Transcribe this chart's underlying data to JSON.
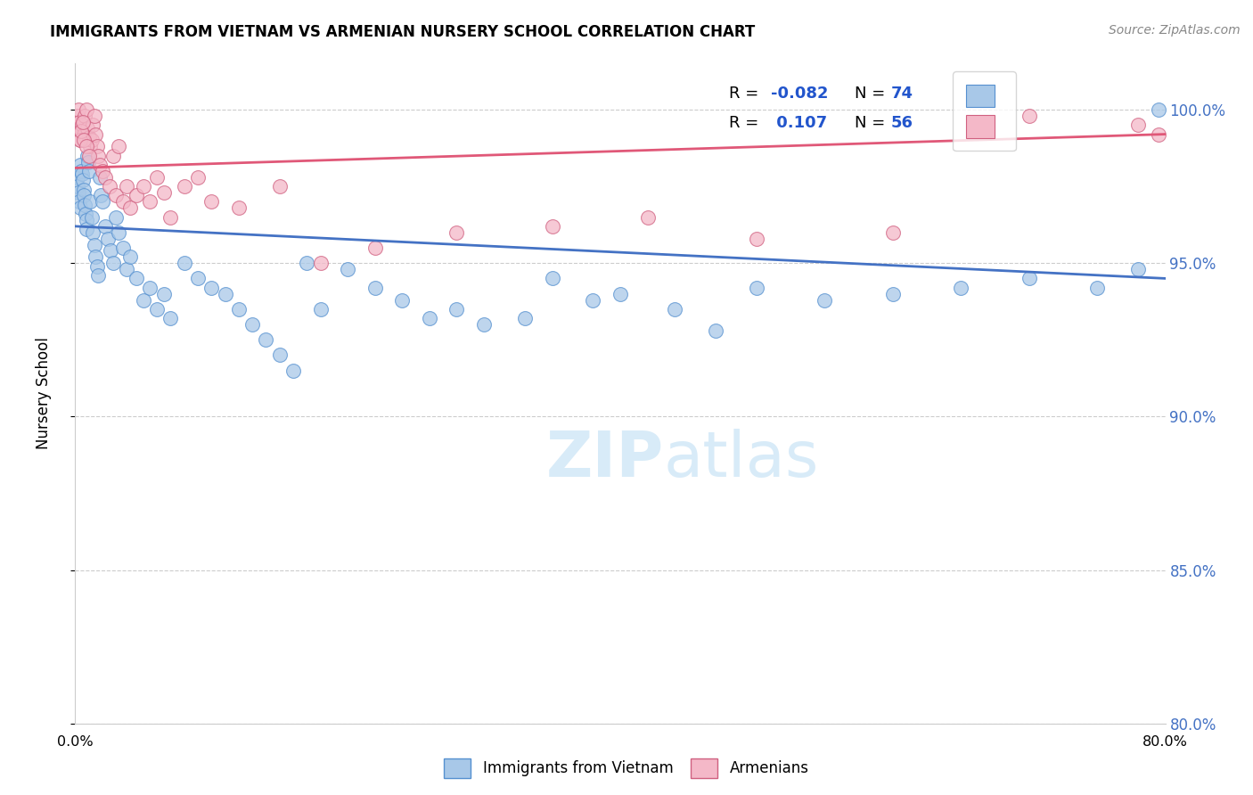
{
  "title": "IMMIGRANTS FROM VIETNAM VS ARMENIAN NURSERY SCHOOL CORRELATION CHART",
  "source": "Source: ZipAtlas.com",
  "ylabel": "Nursery School",
  "blue_color": "#A8C8E8",
  "pink_color": "#F4B8C8",
  "trendline_blue": "#4472C4",
  "trendline_pink": "#E05878",
  "blue_edge": "#5590D0",
  "pink_edge": "#D06080",
  "watermark_color": "#D8EBF8",
  "ytick_color": "#4472C4",
  "grid_color": "#CCCCCC",
  "viet_x": [
    0.15,
    0.2,
    0.25,
    0.3,
    0.35,
    0.4,
    0.45,
    0.5,
    0.55,
    0.6,
    0.65,
    0.7,
    0.75,
    0.8,
    0.85,
    0.9,
    0.95,
    1.0,
    1.1,
    1.2,
    1.3,
    1.4,
    1.5,
    1.6,
    1.7,
    1.8,
    1.9,
    2.0,
    2.2,
    2.4,
    2.6,
    2.8,
    3.0,
    3.2,
    3.5,
    3.8,
    4.0,
    4.5,
    5.0,
    5.5,
    6.0,
    6.5,
    7.0,
    8.0,
    9.0,
    10.0,
    11.0,
    12.0,
    13.0,
    14.0,
    15.0,
    16.0,
    17.0,
    18.0,
    20.0,
    22.0,
    24.0,
    26.0,
    28.0,
    30.0,
    33.0,
    35.0,
    38.0,
    40.0,
    44.0,
    47.0,
    50.0,
    55.0,
    60.0,
    65.0,
    70.0,
    75.0,
    78.0,
    79.5
  ],
  "viet_y": [
    97.8,
    97.5,
    97.3,
    97.0,
    96.8,
    98.2,
    98.0,
    97.9,
    97.7,
    97.4,
    97.2,
    96.9,
    96.6,
    96.4,
    96.1,
    98.5,
    98.3,
    98.0,
    97.0,
    96.5,
    96.0,
    95.6,
    95.2,
    94.9,
    94.6,
    97.8,
    97.2,
    97.0,
    96.2,
    95.8,
    95.4,
    95.0,
    96.5,
    96.0,
    95.5,
    94.8,
    95.2,
    94.5,
    93.8,
    94.2,
    93.5,
    94.0,
    93.2,
    95.0,
    94.5,
    94.2,
    94.0,
    93.5,
    93.0,
    92.5,
    92.0,
    91.5,
    95.0,
    93.5,
    94.8,
    94.2,
    93.8,
    93.2,
    93.5,
    93.0,
    93.2,
    94.5,
    93.8,
    94.0,
    93.5,
    92.8,
    94.2,
    93.8,
    94.0,
    94.2,
    94.5,
    94.2,
    94.8,
    100.0
  ],
  "arm_x": [
    0.15,
    0.2,
    0.25,
    0.3,
    0.35,
    0.4,
    0.5,
    0.6,
    0.7,
    0.8,
    0.9,
    1.0,
    1.1,
    1.2,
    1.3,
    1.4,
    1.5,
    1.6,
    1.7,
    1.8,
    2.0,
    2.2,
    2.5,
    2.8,
    3.0,
    3.2,
    3.5,
    3.8,
    4.0,
    4.5,
    5.0,
    5.5,
    6.0,
    6.5,
    7.0,
    8.0,
    9.0,
    10.0,
    12.0,
    15.0,
    18.0,
    22.0,
    28.0,
    35.0,
    42.0,
    50.0,
    60.0,
    70.0,
    78.0,
    79.5,
    0.35,
    0.45,
    0.55,
    0.65,
    0.85,
    1.05
  ],
  "arm_y": [
    99.5,
    99.8,
    100.0,
    99.6,
    99.3,
    99.0,
    99.5,
    99.2,
    99.8,
    100.0,
    99.4,
    99.1,
    98.8,
    99.0,
    99.5,
    99.8,
    99.2,
    98.8,
    98.5,
    98.2,
    98.0,
    97.8,
    97.5,
    98.5,
    97.2,
    98.8,
    97.0,
    97.5,
    96.8,
    97.2,
    97.5,
    97.0,
    97.8,
    97.3,
    96.5,
    97.5,
    97.8,
    97.0,
    96.8,
    97.5,
    95.0,
    95.5,
    96.0,
    96.2,
    96.5,
    95.8,
    96.0,
    99.8,
    99.5,
    99.2,
    99.0,
    99.3,
    99.6,
    99.0,
    98.8,
    98.5
  ],
  "blue_trend_x0": 0,
  "blue_trend_x1": 80,
  "blue_trend_y0": 96.2,
  "blue_trend_y1": 94.5,
  "pink_trend_x0": 0,
  "pink_trend_x1": 80,
  "pink_trend_y0": 98.1,
  "pink_trend_y1": 99.2,
  "xlim": [
    0,
    80
  ],
  "ylim": [
    80,
    101.5
  ],
  "yticks": [
    80,
    85,
    90,
    95,
    100
  ],
  "ytick_labels": [
    "80.0%",
    "85.0%",
    "90.0%",
    "95.0%",
    "100.0%"
  ]
}
